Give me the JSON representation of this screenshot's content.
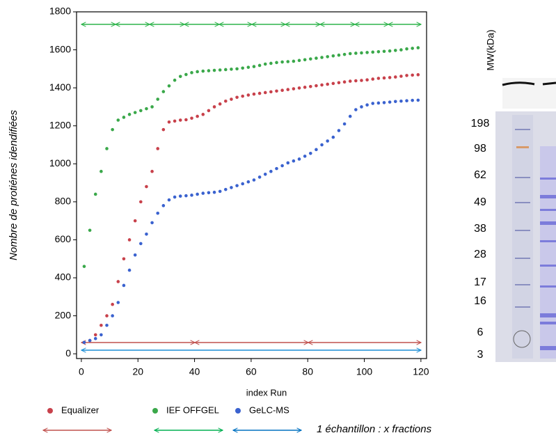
{
  "chart_data": {
    "type": "scatter",
    "xlabel": "index Run",
    "ylabel": "Nombre de protiénes idendifiées",
    "x": [
      1,
      3,
      5,
      7,
      9,
      11,
      13,
      15,
      17,
      19,
      21,
      23,
      25,
      27,
      29,
      31,
      33,
      35,
      37,
      39,
      41,
      43,
      45,
      47,
      49,
      51,
      53,
      55,
      57,
      59,
      61,
      63,
      65,
      67,
      69,
      71,
      73,
      75,
      77,
      79,
      81,
      83,
      85,
      87,
      89,
      91,
      93,
      95,
      97,
      99,
      101,
      103,
      105,
      107,
      109,
      111,
      113,
      115,
      117,
      119
    ],
    "series": [
      {
        "name": "Equalizer",
        "color": "#c8414b",
        "values": [
          60,
          70,
          100,
          150,
          200,
          260,
          380,
          500,
          600,
          700,
          800,
          880,
          960,
          1080,
          1180,
          1220,
          1225,
          1230,
          1232,
          1240,
          1250,
          1260,
          1280,
          1300,
          1315,
          1330,
          1340,
          1350,
          1356,
          1362,
          1367,
          1371,
          1375,
          1379,
          1383,
          1387,
          1391,
          1395,
          1399,
          1403,
          1407,
          1411,
          1415,
          1419,
          1423,
          1427,
          1431,
          1435,
          1437,
          1439,
          1442,
          1446,
          1450,
          1452,
          1454,
          1457,
          1461,
          1465,
          1467,
          1469
        ]
      },
      {
        "name": "IEF OFFGEL",
        "color": "#3aa84a",
        "values": [
          460,
          650,
          840,
          960,
          1080,
          1180,
          1230,
          1245,
          1260,
          1270,
          1280,
          1290,
          1300,
          1340,
          1380,
          1410,
          1440,
          1460,
          1470,
          1480,
          1485,
          1488,
          1490,
          1492,
          1494,
          1496,
          1498,
          1500,
          1504,
          1508,
          1512,
          1518,
          1525,
          1529,
          1533,
          1536,
          1538,
          1540,
          1544,
          1548,
          1552,
          1556,
          1560,
          1564,
          1568,
          1572,
          1576,
          1580,
          1582,
          1584,
          1586,
          1588,
          1590,
          1592,
          1594,
          1597,
          1600,
          1605,
          1608,
          1611
        ]
      },
      {
        "name": "GeLC-MS",
        "color": "#3a62cf",
        "values": [
          60,
          70,
          80,
          100,
          150,
          200,
          270,
          360,
          440,
          520,
          580,
          630,
          690,
          740,
          780,
          810,
          825,
          830,
          832,
          835,
          840,
          845,
          848,
          850,
          855,
          865,
          875,
          885,
          895,
          905,
          915,
          930,
          945,
          960,
          975,
          990,
          1005,
          1015,
          1025,
          1040,
          1055,
          1075,
          1100,
          1120,
          1140,
          1175,
          1210,
          1250,
          1285,
          1300,
          1310,
          1318,
          1320,
          1322,
          1325,
          1328,
          1330,
          1332,
          1334,
          1335
        ]
      }
    ],
    "xlim": [
      -1.7,
      122
    ],
    "xticks": [
      0,
      20,
      40,
      60,
      80,
      100,
      120
    ],
    "ylim": [
      -25,
      1800
    ],
    "yticks": [
      0,
      200,
      400,
      600,
      800,
      1000,
      1200,
      1400,
      1600,
      1800
    ],
    "legend_note": "1 échantillon : x fractions"
  },
  "gel": {
    "title": "MW(kDa)",
    "markers": [
      "198",
      "98",
      "62",
      "49",
      "38",
      "28",
      "17",
      "16",
      "6",
      "3"
    ]
  }
}
